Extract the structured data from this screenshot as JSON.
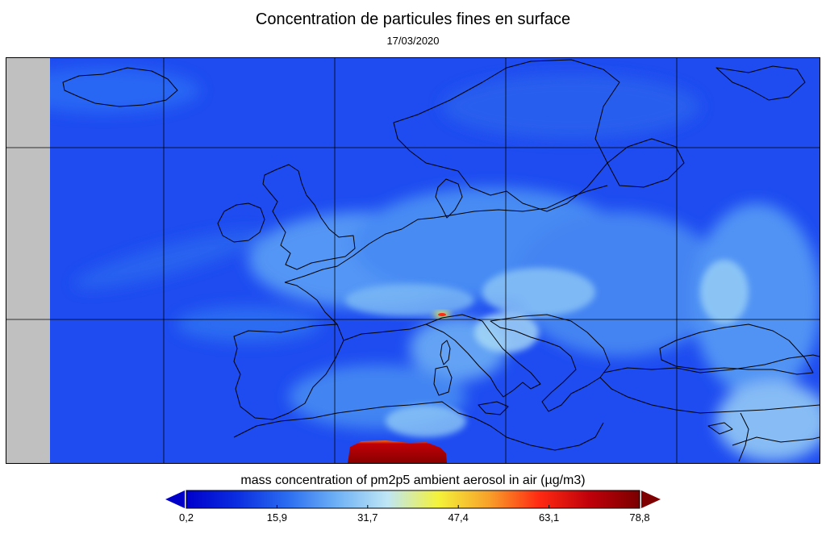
{
  "title": "Concentration de particules fines en surface",
  "date": "17/03/2020",
  "map": {
    "region": "Europe",
    "no_data_color": "#c0c0c0",
    "base_color": "#1f4ff0",
    "coastline_color": "#000000",
    "hotspots": [
      "North Africa",
      "Po Valley"
    ]
  },
  "colorbar": {
    "title": "mass concentration of pm2p5 ambient aerosol in air (µg/m3)",
    "ticks": [
      "0,2",
      "15,9",
      "31,7",
      "47,4",
      "63,1",
      "78,8"
    ],
    "min": 0.2,
    "max": 78.8,
    "colors": [
      "#0000cc",
      "#0a2de0",
      "#2a6cf0",
      "#6fb2f5",
      "#bfe6f5",
      "#f4f23a",
      "#f8a12a",
      "#ff2a12",
      "#c0000a",
      "#7a0000"
    ],
    "left_arrow_color": "#0000c8",
    "right_arrow_color": "#7f0000"
  }
}
